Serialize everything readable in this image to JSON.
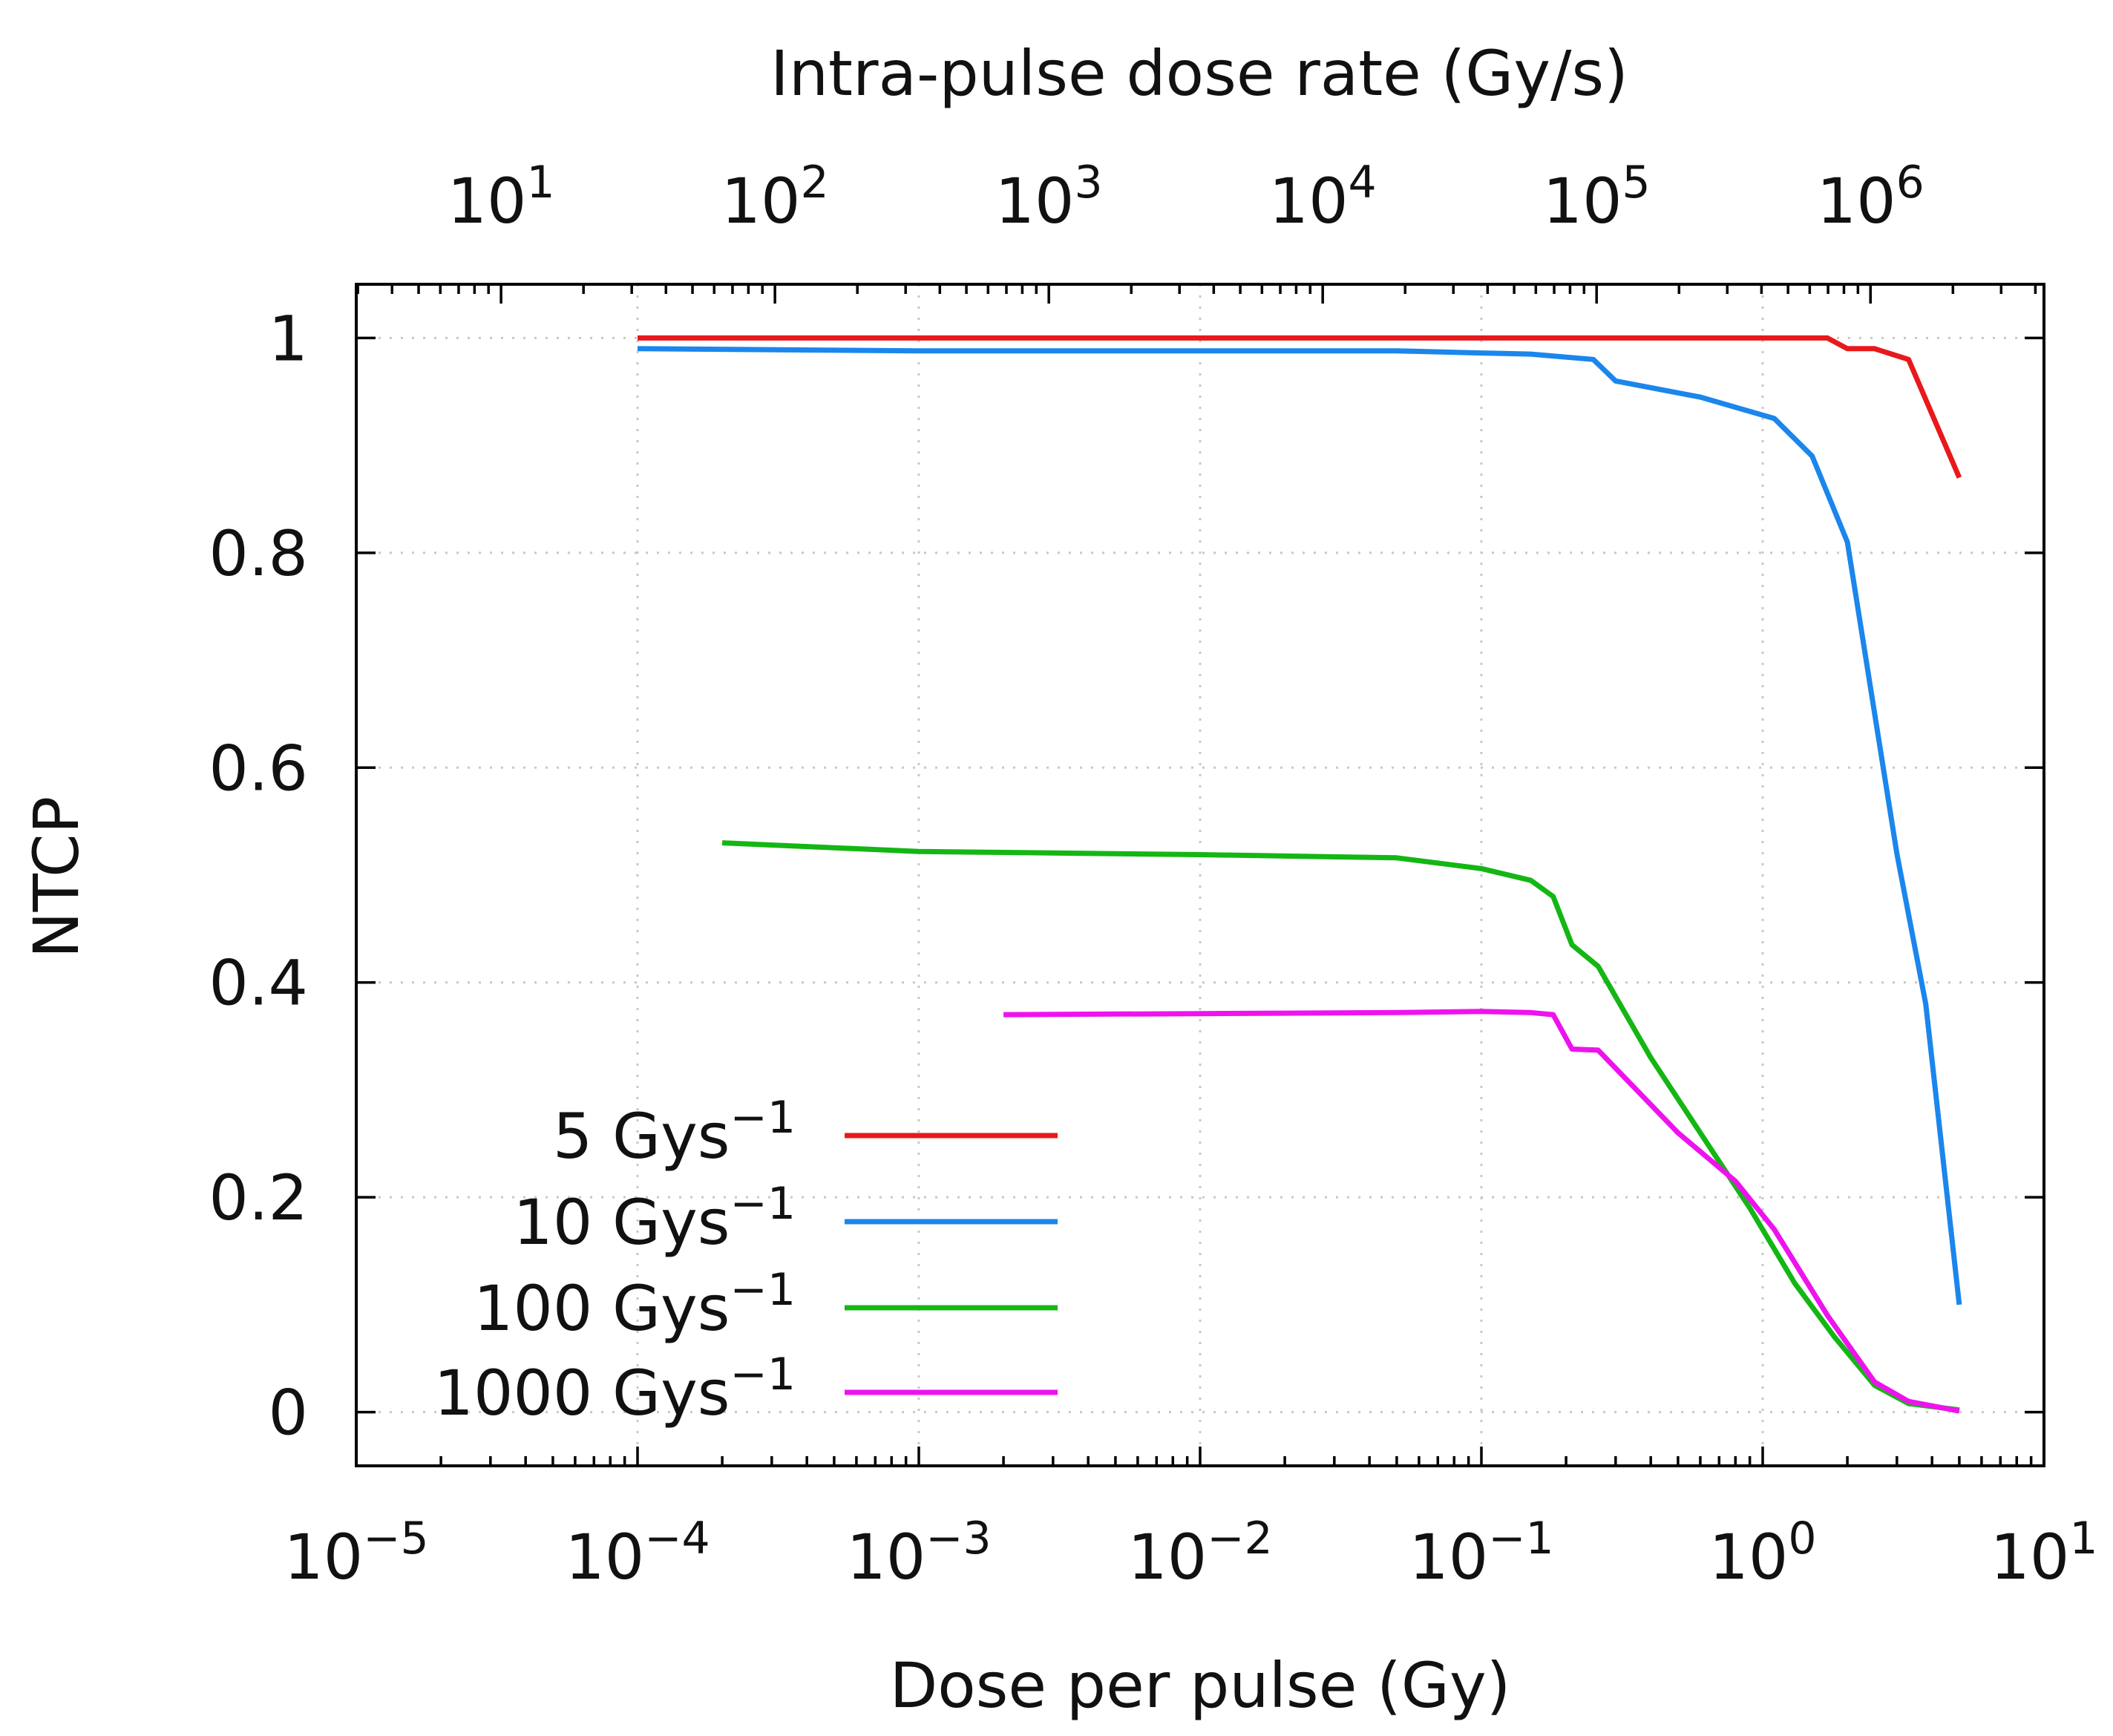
{
  "chart_data": {
    "type": "line",
    "xlabel": "Dose per pulse (Gy)",
    "x2label": "Intra-pulse dose rate (Gy/s)",
    "ylabel": "NTCP",
    "xscale": "log",
    "x2scale": "log",
    "xlim": [
      1e-05,
      10
    ],
    "x2lim": [
      2.96,
      4300000.0
    ],
    "ylim": [
      -0.05,
      1.05
    ],
    "grid": true,
    "legend_position": "bottom-left",
    "x_ticks": [
      {
        "value": 1e-05,
        "base": "10",
        "exp": "−5"
      },
      {
        "value": 0.0001,
        "base": "10",
        "exp": "−4"
      },
      {
        "value": 0.001,
        "base": "10",
        "exp": "−3"
      },
      {
        "value": 0.01,
        "base": "10",
        "exp": "−2"
      },
      {
        "value": 0.1,
        "base": "10",
        "exp": "−1"
      },
      {
        "value": 1,
        "base": "10",
        "exp": "0"
      },
      {
        "value": 10,
        "base": "10",
        "exp": "1"
      }
    ],
    "x2_ticks": [
      {
        "value": 10,
        "base": "10",
        "exp": "1"
      },
      {
        "value": 100,
        "base": "10",
        "exp": "2"
      },
      {
        "value": 1000,
        "base": "10",
        "exp": "3"
      },
      {
        "value": 10000,
        "base": "10",
        "exp": "4"
      },
      {
        "value": 100000,
        "base": "10",
        "exp": "5"
      },
      {
        "value": 1000000,
        "base": "10",
        "exp": "6"
      }
    ],
    "y_ticks": [
      {
        "value": 0,
        "label": "0"
      },
      {
        "value": 0.2,
        "label": "0.2"
      },
      {
        "value": 0.4,
        "label": "0.4"
      },
      {
        "value": 0.6,
        "label": "0.6"
      },
      {
        "value": 0.8,
        "label": "0.8"
      },
      {
        "value": 1,
        "label": "1"
      }
    ],
    "series": [
      {
        "name": "5 Gys",
        "name_exp": "−1",
        "color": "#e8191c",
        "x": [
          0.0001,
          0.001,
          0.01,
          0.1,
          0.5,
          1.0,
          1.7,
          2.0,
          2.5,
          3.3,
          5.0
        ],
        "y": [
          1.0,
          1.0,
          1.0,
          1.0,
          1.0,
          1.0,
          1.0,
          0.99,
          0.99,
          0.98,
          0.87
        ]
      },
      {
        "name": "10 Gys",
        "name_exp": "−1",
        "color": "#1b86ec",
        "x": [
          0.0001,
          0.001,
          0.01,
          0.05,
          0.1,
          0.15,
          0.25,
          0.3,
          0.6,
          1.1,
          1.5,
          2.0,
          3.0,
          3.8,
          5.0
        ],
        "y": [
          0.99,
          0.988,
          0.988,
          0.988,
          0.986,
          0.985,
          0.98,
          0.96,
          0.945,
          0.925,
          0.89,
          0.81,
          0.52,
          0.38,
          0.1
        ]
      },
      {
        "name": "100 Gys",
        "name_exp": "−1",
        "color": "#14b614",
        "x": [
          0.0002,
          0.001,
          0.01,
          0.05,
          0.1,
          0.15,
          0.18,
          0.21,
          0.26,
          0.4,
          0.6,
          0.9,
          1.3,
          1.8,
          2.5,
          3.3,
          5.0
        ],
        "y": [
          0.53,
          0.522,
          0.519,
          0.516,
          0.506,
          0.495,
          0.48,
          0.435,
          0.415,
          0.33,
          0.26,
          0.19,
          0.12,
          0.07,
          0.025,
          0.008,
          0.002
        ]
      },
      {
        "name": "1000 Gys",
        "name_exp": "−1",
        "color": "#ee13ee",
        "x": [
          0.002,
          0.01,
          0.05,
          0.1,
          0.15,
          0.18,
          0.21,
          0.26,
          0.5,
          0.8,
          1.1,
          1.7,
          2.5,
          3.3,
          5.0
        ],
        "y": [
          0.37,
          0.371,
          0.372,
          0.373,
          0.372,
          0.37,
          0.338,
          0.337,
          0.26,
          0.215,
          0.17,
          0.09,
          0.028,
          0.01,
          0.001
        ]
      }
    ]
  }
}
